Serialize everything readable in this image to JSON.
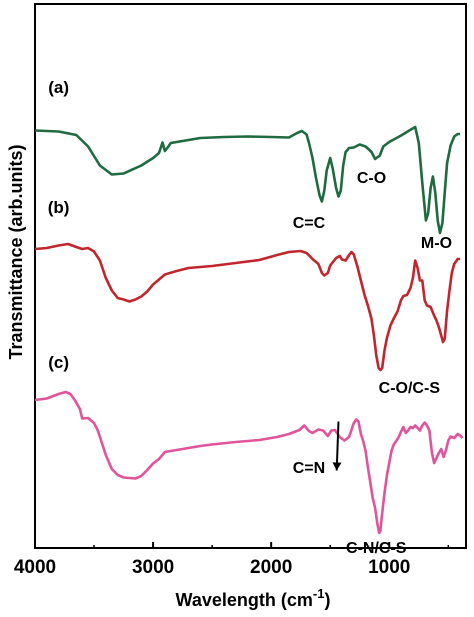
{
  "chart_data": {
    "type": "line",
    "title": "",
    "xlabel": "Wavelength (cm",
    "xlabel_sup": "-1",
    "xlabel_close": ")",
    "ylabel": "Transmittance (arb.units)",
    "xlim": [
      4000,
      350
    ],
    "ylim": [
      0,
      100
    ],
    "x_ticks": [
      4000,
      3000,
      2000,
      1000
    ],
    "x_tick_labels": [
      "4000",
      "3000",
      "2000",
      "1000"
    ],
    "y_ticks_labeled": false,
    "grid": false,
    "series": [
      {
        "name": "(a)",
        "color": "#1f6b3f",
        "points": [
          [
            4000,
            80.5
          ],
          [
            3800,
            80.3
          ],
          [
            3650,
            79.6
          ],
          [
            3550,
            77.3
          ],
          [
            3450,
            73.5
          ],
          [
            3350,
            71.7
          ],
          [
            3250,
            71.9
          ],
          [
            3100,
            73.5
          ],
          [
            3000,
            75.0
          ],
          [
            2950,
            76.0
          ],
          [
            2920,
            78.1
          ],
          [
            2900,
            76.4
          ],
          [
            2870,
            77.3
          ],
          [
            2850,
            78.0
          ],
          [
            2800,
            78.2
          ],
          [
            2600,
            79.0
          ],
          [
            2400,
            79.2
          ],
          [
            2200,
            79.3
          ],
          [
            2000,
            79.2
          ],
          [
            1850,
            79.1
          ],
          [
            1780,
            80.0
          ],
          [
            1740,
            80.4
          ],
          [
            1700,
            79.7
          ],
          [
            1680,
            78.0
          ],
          [
            1650,
            75.0
          ],
          [
            1620,
            71.0
          ],
          [
            1590,
            67.5
          ],
          [
            1570,
            66.3
          ],
          [
            1550,
            68.5
          ],
          [
            1530,
            72.5
          ],
          [
            1500,
            75.0
          ],
          [
            1480,
            73.0
          ],
          [
            1450,
            69.0
          ],
          [
            1430,
            67.3
          ],
          [
            1410,
            68.5
          ],
          [
            1390,
            73.5
          ],
          [
            1370,
            76.2
          ],
          [
            1340,
            77.0
          ],
          [
            1300,
            77.1
          ],
          [
            1250,
            77.7
          ],
          [
            1200,
            77.3
          ],
          [
            1150,
            76.2
          ],
          [
            1120,
            74.8
          ],
          [
            1080,
            75.5
          ],
          [
            1050,
            77.3
          ],
          [
            1000,
            78.2
          ],
          [
            900,
            79.5
          ],
          [
            830,
            80.5
          ],
          [
            780,
            81.2
          ],
          [
            750,
            78.0
          ],
          [
            720,
            70.0
          ],
          [
            700,
            65.0
          ],
          [
            690,
            62.5
          ],
          [
            670,
            64.0
          ],
          [
            650,
            69.0
          ],
          [
            630,
            71.3
          ],
          [
            610,
            68.0
          ],
          [
            590,
            62.5
          ],
          [
            570,
            60.0
          ],
          [
            550,
            62.0
          ],
          [
            530,
            68.0
          ],
          [
            510,
            74.0
          ],
          [
            480,
            77.5
          ],
          [
            450,
            79.3
          ],
          [
            420,
            79.8
          ],
          [
            400,
            79.8
          ]
        ]
      },
      {
        "name": "(b)",
        "color": "#c0262d",
        "points": [
          [
            4000,
            56.8
          ],
          [
            3900,
            57.0
          ],
          [
            3800,
            57.5
          ],
          [
            3720,
            57.8
          ],
          [
            3650,
            57.2
          ],
          [
            3600,
            56.8
          ],
          [
            3550,
            57.0
          ],
          [
            3500,
            56.3
          ],
          [
            3450,
            54.5
          ],
          [
            3400,
            51.0
          ],
          [
            3350,
            48.5
          ],
          [
            3300,
            47.0
          ],
          [
            3250,
            46.7
          ],
          [
            3200,
            46.3
          ],
          [
            3150,
            46.7
          ],
          [
            3100,
            47.3
          ],
          [
            3050,
            48.3
          ],
          [
            3000,
            49.7
          ],
          [
            2950,
            50.7
          ],
          [
            2900,
            51.7
          ],
          [
            2800,
            52.4
          ],
          [
            2700,
            53.0
          ],
          [
            2500,
            53.4
          ],
          [
            2300,
            54.0
          ],
          [
            2100,
            54.6
          ],
          [
            1950,
            55.6
          ],
          [
            1850,
            56.2
          ],
          [
            1750,
            56.4
          ],
          [
            1700,
            56.0
          ],
          [
            1650,
            54.8
          ],
          [
            1600,
            53.8
          ],
          [
            1570,
            52.0
          ],
          [
            1550,
            51.5
          ],
          [
            1520,
            52.0
          ],
          [
            1500,
            53.5
          ],
          [
            1450,
            55.0
          ],
          [
            1420,
            55.4
          ],
          [
            1400,
            54.7
          ],
          [
            1370,
            54.5
          ],
          [
            1340,
            55.6
          ],
          [
            1320,
            56.2
          ],
          [
            1300,
            55.7
          ],
          [
            1270,
            53.3
          ],
          [
            1240,
            50.5
          ],
          [
            1210,
            47.7
          ],
          [
            1180,
            45.4
          ],
          [
            1150,
            42.8
          ],
          [
            1130,
            39.5
          ],
          [
            1110,
            35.5
          ],
          [
            1090,
            33.0
          ],
          [
            1075,
            32.6
          ],
          [
            1060,
            33.0
          ],
          [
            1040,
            36.5
          ],
          [
            1020,
            39.0
          ],
          [
            990,
            41.5
          ],
          [
            960,
            43.0
          ],
          [
            930,
            44.3
          ],
          [
            900,
            46.6
          ],
          [
            880,
            47.4
          ],
          [
            850,
            47.6
          ],
          [
            820,
            49.0
          ],
          [
            800,
            51.0
          ],
          [
            780,
            54.5
          ],
          [
            760,
            53.0
          ],
          [
            740,
            50.5
          ],
          [
            720,
            50.5
          ],
          [
            700,
            46.5
          ],
          [
            680,
            45.5
          ],
          [
            650,
            45.2
          ],
          [
            620,
            43.5
          ],
          [
            600,
            42.5
          ],
          [
            580,
            41.2
          ],
          [
            560,
            39.5
          ],
          [
            545,
            38.2
          ],
          [
            530,
            38.8
          ],
          [
            510,
            44.5
          ],
          [
            490,
            48.5
          ],
          [
            470,
            52.0
          ],
          [
            450,
            53.8
          ],
          [
            420,
            54.8
          ],
          [
            400,
            54.8
          ]
        ]
      },
      {
        "name": "(c)",
        "color": "#e0559a",
        "points": [
          [
            4000,
            26.6
          ],
          [
            3900,
            26.9
          ],
          [
            3800,
            27.8
          ],
          [
            3740,
            28.2
          ],
          [
            3700,
            27.8
          ],
          [
            3660,
            26.5
          ],
          [
            3620,
            24.8
          ],
          [
            3600,
            22.9
          ],
          [
            3550,
            23.0
          ],
          [
            3500,
            22.0
          ],
          [
            3470,
            20.6
          ],
          [
            3440,
            18.5
          ],
          [
            3400,
            15.6
          ],
          [
            3350,
            12.8
          ],
          [
            3300,
            11.6
          ],
          [
            3250,
            11.1
          ],
          [
            3200,
            11.0
          ],
          [
            3150,
            10.9
          ],
          [
            3100,
            11.4
          ],
          [
            3050,
            12.6
          ],
          [
            3000,
            13.9
          ],
          [
            2950,
            14.8
          ],
          [
            2900,
            16.2
          ],
          [
            2800,
            16.6
          ],
          [
            2700,
            17.0
          ],
          [
            2600,
            17.4
          ],
          [
            2500,
            17.7
          ],
          [
            2300,
            18.2
          ],
          [
            2100,
            18.6
          ],
          [
            1950,
            19.2
          ],
          [
            1850,
            19.8
          ],
          [
            1760,
            20.6
          ],
          [
            1720,
            21.5
          ],
          [
            1680,
            20.4
          ],
          [
            1650,
            20.0
          ],
          [
            1600,
            20.7
          ],
          [
            1560,
            20.5
          ],
          [
            1520,
            19.4
          ],
          [
            1490,
            20.5
          ],
          [
            1460,
            20.6
          ],
          [
            1420,
            19.2
          ],
          [
            1380,
            18.5
          ],
          [
            1340,
            19.2
          ],
          [
            1300,
            22.0
          ],
          [
            1280,
            22.7
          ],
          [
            1260,
            22.3
          ],
          [
            1240,
            19.8
          ],
          [
            1220,
            18.3
          ],
          [
            1200,
            16.4
          ],
          [
            1180,
            13.0
          ],
          [
            1160,
            10.0
          ],
          [
            1140,
            7.0
          ],
          [
            1120,
            5.0
          ],
          [
            1100,
            1.8
          ],
          [
            1085,
            0.0
          ],
          [
            1075,
            0.5
          ],
          [
            1060,
            4.0
          ],
          [
            1040,
            8.0
          ],
          [
            1020,
            11.5
          ],
          [
            1000,
            14.0
          ],
          [
            980,
            16.5
          ],
          [
            960,
            17.8
          ],
          [
            940,
            18.4
          ],
          [
            920,
            19.2
          ],
          [
            900,
            20.3
          ],
          [
            880,
            21.2
          ],
          [
            860,
            20.0
          ],
          [
            840,
            20.5
          ],
          [
            820,
            21.2
          ],
          [
            800,
            21.0
          ],
          [
            780,
            21.5
          ],
          [
            760,
            21.0
          ],
          [
            740,
            20.5
          ],
          [
            720,
            21.5
          ],
          [
            700,
            22.1
          ],
          [
            680,
            21.5
          ],
          [
            660,
            20.5
          ],
          [
            640,
            16.2
          ],
          [
            620,
            14.0
          ],
          [
            600,
            15.0
          ],
          [
            580,
            16.0
          ],
          [
            560,
            16.8
          ],
          [
            540,
            15.2
          ],
          [
            520,
            16.5
          ],
          [
            500,
            18.5
          ],
          [
            480,
            19.3
          ],
          [
            450,
            19.0
          ],
          [
            420,
            19.8
          ],
          [
            400,
            19.5
          ],
          [
            380,
            19.0
          ]
        ]
      }
    ],
    "series_labels": [
      "(a)",
      "(b)",
      "(c)"
    ],
    "annotations": [
      {
        "text": "C-O",
        "x": 1150,
        "y": 70
      },
      {
        "text": "C=C",
        "x": 1680,
        "y": 61
      },
      {
        "text": "M-O",
        "x": 600,
        "y": 57
      },
      {
        "text": "C-O/C-S",
        "x": 830,
        "y": 28
      },
      {
        "text": "C=N",
        "x": 1680,
        "y": 12
      },
      {
        "text": "C-N/C-S",
        "x": 1110,
        "y": -4
      }
    ],
    "arrow": {
      "from": [
        1430,
        22.3
      ],
      "to": [
        1445,
        12.5
      ]
    }
  }
}
